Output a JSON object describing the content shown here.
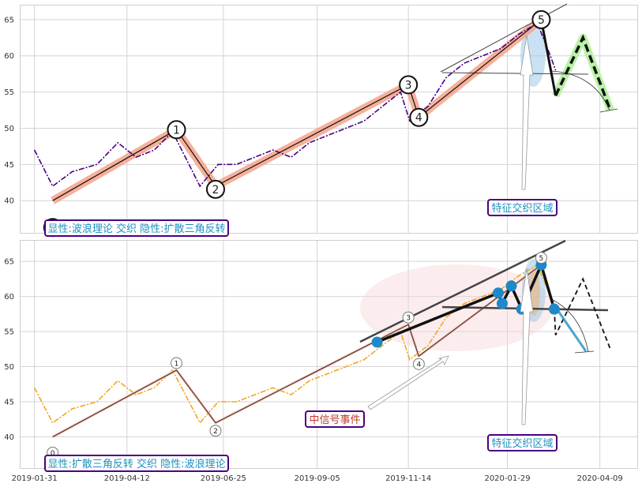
{
  "chart_data": [
    {
      "type": "line",
      "panel": "top",
      "ylim": [
        35.5,
        67
      ],
      "yticks": [
        "40",
        "45",
        "50",
        "55",
        "60",
        "65"
      ],
      "grid": true,
      "series": [
        {
          "style": "dash-dot",
          "color": "#4b0082",
          "x": [
            "2019-01-31",
            "2019-02-14",
            "2019-03-01",
            "2019-03-20",
            "2019-04-05",
            "2019-04-19",
            "2019-05-03",
            "2019-05-17",
            "2019-05-24",
            "2019-06-07",
            "2019-06-21",
            "2019-07-05",
            "2019-07-19",
            "2019-08-02",
            "2019-08-16",
            "2019-08-30",
            "2019-09-13",
            "2019-09-27",
            "2019-10-11",
            "2019-10-25",
            "2019-11-08",
            "2019-11-15",
            "2019-11-29",
            "2019-12-13",
            "2019-12-27",
            "2020-01-10",
            "2020-01-24",
            "2020-02-07",
            "2020-02-21",
            "2020-03-02",
            "2020-03-06"
          ],
          "values": [
            47,
            42,
            44,
            45,
            48,
            46,
            47,
            49.5,
            47,
            42,
            45,
            45,
            46,
            47,
            46,
            48,
            49,
            50,
            51,
            53,
            55,
            51,
            53,
            57,
            59,
            60,
            61,
            63,
            64.5,
            60,
            58
          ]
        }
      ],
      "wave_points": [
        {
          "label": "0",
          "x": "2019-02-14",
          "y": 40
        },
        {
          "label": "1",
          "x": "2019-05-20",
          "y": 49.8
        },
        {
          "label": "2",
          "x": "2019-06-19",
          "y": 42
        },
        {
          "label": "3",
          "x": "2019-11-14",
          "y": 56
        },
        {
          "label": "4",
          "x": "2019-11-22",
          "y": 51.5
        },
        {
          "label": "5",
          "x": "2020-02-24",
          "y": 65
        }
      ],
      "projection": [
        {
          "x": "2020-02-24",
          "y": 65
        },
        {
          "x": "2020-03-06",
          "y": 54.5
        },
        {
          "x": "2020-03-27",
          "y": 62.5
        },
        {
          "x": "2020-04-17",
          "y": 52.5
        }
      ],
      "annotations": {
        "feature_zone": "特征交织区域",
        "caption": "显性:波浪理论 交织 隐性:扩散三角反转"
      }
    },
    {
      "type": "line",
      "panel": "bottom",
      "ylim": [
        35.5,
        68
      ],
      "yticks": [
        "40",
        "45",
        "50",
        "55",
        "60",
        "65"
      ],
      "xticks": [
        "2019-01-31",
        "2019-04-12",
        "2019-06-25",
        "2019-09-05",
        "2019-11-14",
        "2020-01-29",
        "2020-04-09"
      ],
      "grid": true,
      "series": [
        {
          "style": "dash-dot",
          "color": "#f0a820",
          "x": [
            "2019-01-31",
            "2019-02-14",
            "2019-03-01",
            "2019-03-20",
            "2019-04-05",
            "2019-04-19",
            "2019-05-03",
            "2019-05-17",
            "2019-05-24",
            "2019-06-07",
            "2019-06-21",
            "2019-07-05",
            "2019-07-19",
            "2019-08-02",
            "2019-08-16",
            "2019-08-30",
            "2019-09-13",
            "2019-09-27",
            "2019-10-11",
            "2019-10-25",
            "2019-11-08",
            "2019-11-15",
            "2019-11-29",
            "2019-12-13",
            "2019-12-27",
            "2020-01-10",
            "2020-01-24",
            "2020-02-07",
            "2020-02-21",
            "2020-03-02",
            "2020-03-06"
          ],
          "values": [
            47,
            42,
            44,
            45,
            48,
            46,
            47,
            49.5,
            47,
            42,
            45,
            45,
            46,
            47,
            46,
            48,
            49,
            50,
            51,
            53,
            55,
            51,
            53,
            57,
            59,
            60,
            61,
            63,
            64.5,
            60,
            58
          ]
        }
      ],
      "wave_points": [
        {
          "label": "0",
          "x": "2019-02-14",
          "y": 40
        },
        {
          "label": "1",
          "x": "2019-05-20",
          "y": 49.5
        },
        {
          "label": "2",
          "x": "2019-06-19",
          "y": 42
        },
        {
          "label": "3",
          "x": "2019-11-14",
          "y": 56
        },
        {
          "label": "4",
          "x": "2019-11-22",
          "y": 51.5
        },
        {
          "label": "5",
          "x": "2020-02-24",
          "y": 64.5
        }
      ],
      "triangle_points": [
        {
          "x": "2019-10-21",
          "y": 53.5
        },
        {
          "x": "2020-01-22",
          "y": 60.5
        },
        {
          "x": "2020-01-25",
          "y": 59
        },
        {
          "x": "2020-02-01",
          "y": 61.5
        },
        {
          "x": "2020-02-09",
          "y": 58.2
        },
        {
          "x": "2020-02-24",
          "y": 64.5
        },
        {
          "x": "2020-03-05",
          "y": 58.2
        }
      ],
      "projection": [
        {
          "x": "2020-03-06",
          "y": 54.5
        },
        {
          "x": "2020-03-27",
          "y": 62.5
        },
        {
          "x": "2020-04-17",
          "y": 52.5
        }
      ],
      "annotations": {
        "signal": "中信号事件",
        "feature_zone": "特征交织区域",
        "caption": "显性:扩散三角反转 交织 隐性:波浪理论"
      }
    }
  ]
}
